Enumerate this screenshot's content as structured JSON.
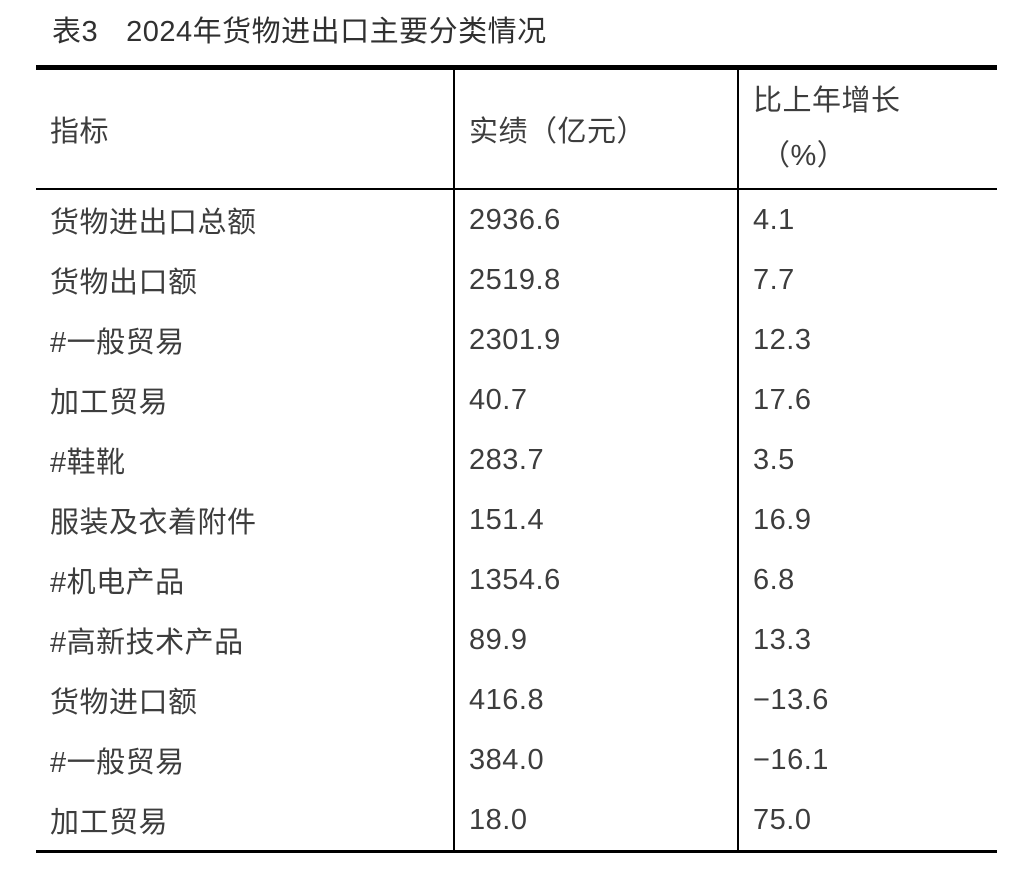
{
  "page": {
    "title_prefix": "表3",
    "title_text": "2024年货物进出口主要分类情况"
  },
  "table": {
    "headers": {
      "indicator": "指标",
      "value": "实绩（亿元）",
      "growth_line1": "比上年增长",
      "growth_line2": "（%）"
    },
    "rows": [
      {
        "indicator": "货物进出口总额",
        "value": "2936.6",
        "growth": "4.1"
      },
      {
        "indicator": "货物出口额",
        "value": "2519.8",
        "growth": "7.7"
      },
      {
        "indicator": "#一般贸易",
        "value": "2301.9",
        "growth": "12.3"
      },
      {
        "indicator": "加工贸易",
        "value": "40.7",
        "growth": "17.6"
      },
      {
        "indicator": "#鞋靴",
        "value": "283.7",
        "growth": "3.5"
      },
      {
        "indicator": "服装及衣着附件",
        "value": "151.4",
        "growth": "16.9"
      },
      {
        "indicator": "#机电产品",
        "value": "1354.6",
        "growth": "6.8"
      },
      {
        "indicator": "#高新技术产品",
        "value": "89.9",
        "growth": "13.3"
      },
      {
        "indicator": "货物进口额",
        "value": "416.8",
        "growth": "−13.6"
      },
      {
        "indicator": "#一般贸易",
        "value": "384.0",
        "growth": "−16.1"
      },
      {
        "indicator": "加工贸易",
        "value": "18.0",
        "growth": "75.0"
      }
    ],
    "colors": {
      "text": "#3d3d3d",
      "border": "#000000",
      "background": "#ffffff"
    }
  }
}
